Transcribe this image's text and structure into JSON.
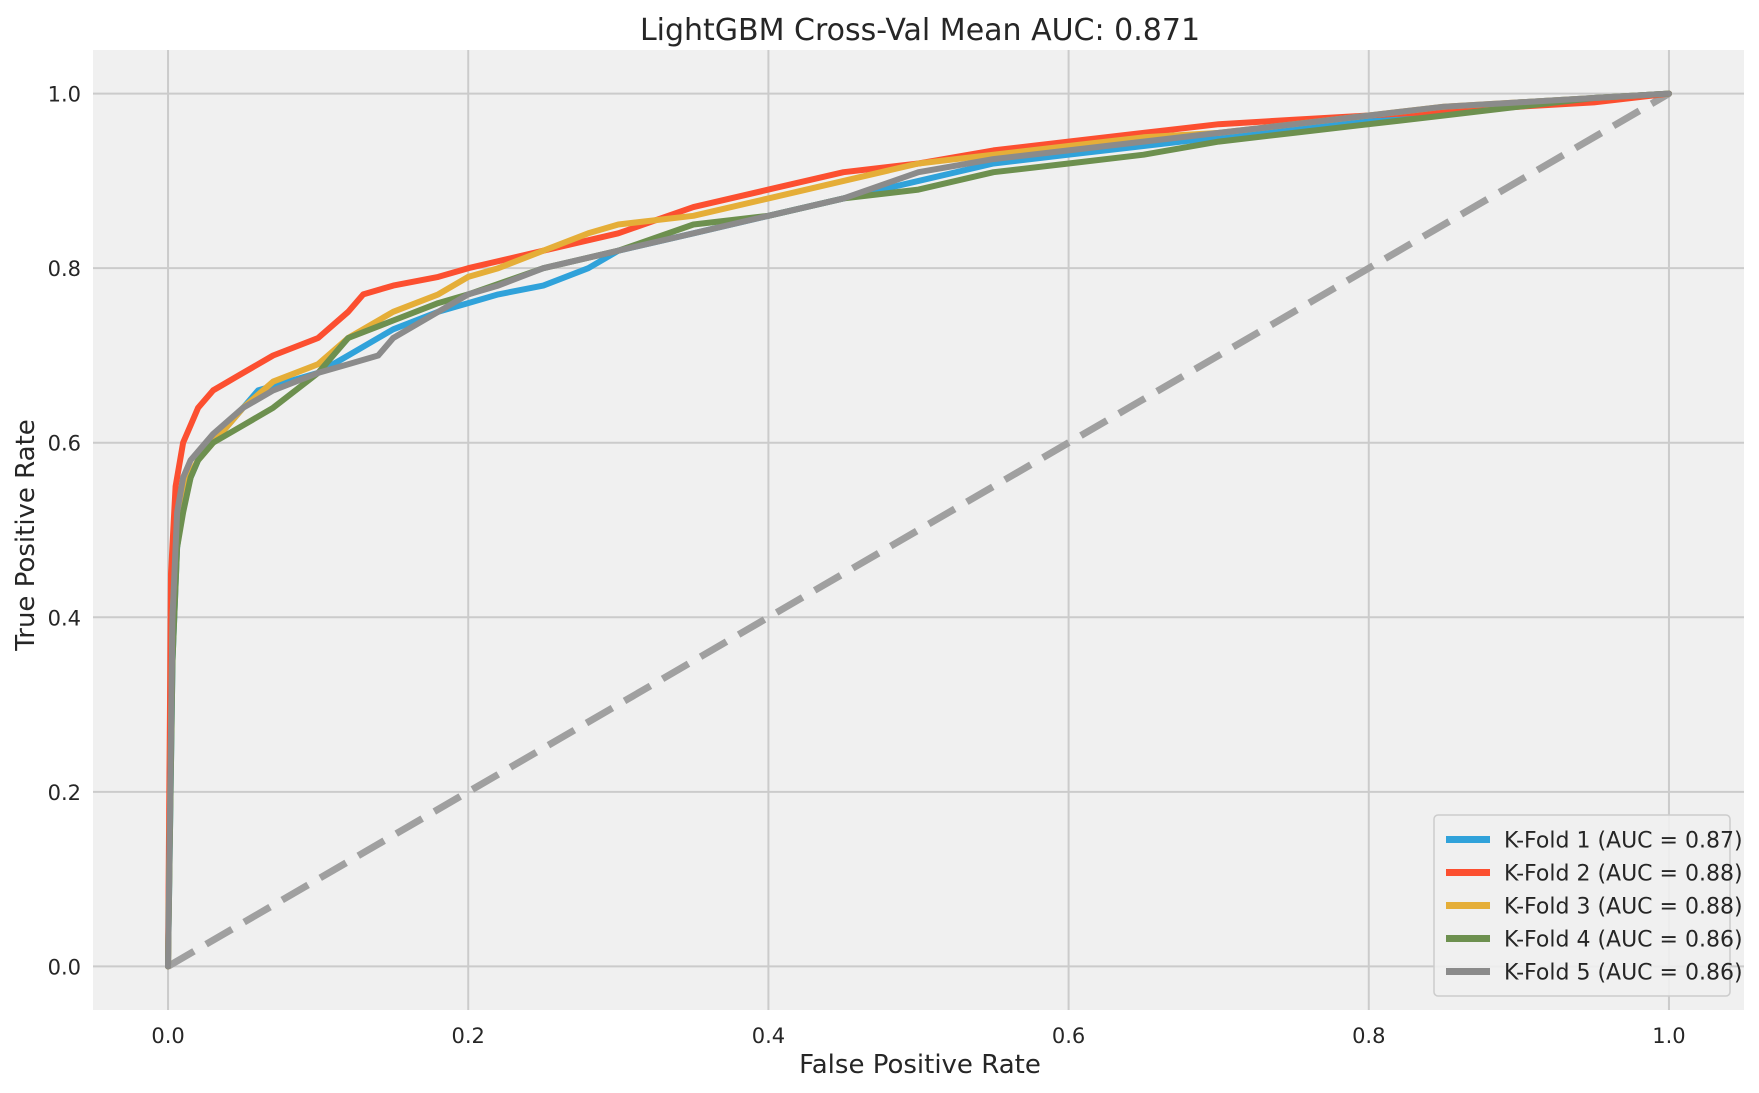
{
  "chart_data": {
    "type": "line",
    "title": "LightGBM Cross-Val Mean AUC: 0.871",
    "xlabel": "False Positive Rate",
    "ylabel": "True Positive Rate",
    "xlim": [
      -0.05,
      1.05
    ],
    "ylim": [
      -0.05,
      1.05
    ],
    "xticks": [
      0.0,
      0.2,
      0.4,
      0.6,
      0.8,
      1.0
    ],
    "yticks": [
      0.0,
      0.2,
      0.4,
      0.6,
      0.8,
      1.0
    ],
    "tick_labels": [
      "0.0",
      "0.2",
      "0.4",
      "0.6",
      "0.8",
      "1.0"
    ],
    "grid": true,
    "background_color": "#f0f0f0",
    "grid_color": "#cbcbcb",
    "legend_position": "lower-right",
    "series": [
      {
        "name": "K-Fold 1 (AUC = 0.87)",
        "color": "#30a2da",
        "x": [
          0.0,
          0.003,
          0.006,
          0.01,
          0.015,
          0.02,
          0.03,
          0.04,
          0.05,
          0.06,
          0.08,
          0.1,
          0.12,
          0.15,
          0.18,
          0.2,
          0.22,
          0.25,
          0.28,
          0.3,
          0.35,
          0.4,
          0.45,
          0.5,
          0.55,
          0.6,
          0.65,
          0.7,
          0.75,
          0.8,
          0.85,
          0.9,
          0.95,
          1.0
        ],
        "y": [
          0.0,
          0.35,
          0.48,
          0.53,
          0.56,
          0.58,
          0.6,
          0.62,
          0.64,
          0.66,
          0.67,
          0.68,
          0.7,
          0.73,
          0.75,
          0.76,
          0.77,
          0.78,
          0.8,
          0.82,
          0.84,
          0.86,
          0.88,
          0.9,
          0.92,
          0.93,
          0.94,
          0.95,
          0.96,
          0.97,
          0.98,
          0.99,
          0.995,
          1.0
        ]
      },
      {
        "name": "K-Fold 2 (AUC = 0.88)",
        "color": "#fc4f30",
        "x": [
          0.0,
          0.002,
          0.005,
          0.01,
          0.015,
          0.02,
          0.03,
          0.04,
          0.05,
          0.07,
          0.1,
          0.12,
          0.13,
          0.15,
          0.18,
          0.2,
          0.25,
          0.3,
          0.35,
          0.4,
          0.45,
          0.5,
          0.55,
          0.6,
          0.65,
          0.7,
          0.75,
          0.8,
          0.85,
          0.9,
          0.95,
          1.0
        ],
        "y": [
          0.0,
          0.45,
          0.55,
          0.6,
          0.62,
          0.64,
          0.66,
          0.67,
          0.68,
          0.7,
          0.72,
          0.75,
          0.77,
          0.78,
          0.79,
          0.8,
          0.82,
          0.84,
          0.87,
          0.89,
          0.91,
          0.92,
          0.935,
          0.945,
          0.955,
          0.965,
          0.97,
          0.975,
          0.98,
          0.985,
          0.99,
          1.0
        ]
      },
      {
        "name": "K-Fold 3 (AUC = 0.88)",
        "color": "#e5ae38",
        "x": [
          0.0,
          0.003,
          0.006,
          0.01,
          0.02,
          0.03,
          0.04,
          0.05,
          0.07,
          0.1,
          0.12,
          0.15,
          0.18,
          0.2,
          0.22,
          0.25,
          0.28,
          0.3,
          0.35,
          0.4,
          0.45,
          0.5,
          0.55,
          0.6,
          0.65,
          0.7,
          0.75,
          0.8,
          0.85,
          0.9,
          0.95,
          1.0
        ],
        "y": [
          0.0,
          0.4,
          0.5,
          0.55,
          0.58,
          0.6,
          0.62,
          0.64,
          0.67,
          0.69,
          0.72,
          0.75,
          0.77,
          0.79,
          0.8,
          0.82,
          0.84,
          0.85,
          0.86,
          0.88,
          0.9,
          0.92,
          0.93,
          0.94,
          0.95,
          0.955,
          0.965,
          0.975,
          0.985,
          0.99,
          0.995,
          1.0
        ]
      },
      {
        "name": "K-Fold 4 (AUC = 0.86)",
        "color": "#6d904f",
        "x": [
          0.0,
          0.003,
          0.006,
          0.01,
          0.015,
          0.02,
          0.03,
          0.05,
          0.07,
          0.1,
          0.12,
          0.15,
          0.18,
          0.2,
          0.25,
          0.3,
          0.35,
          0.4,
          0.45,
          0.5,
          0.55,
          0.6,
          0.65,
          0.7,
          0.75,
          0.8,
          0.85,
          0.9,
          0.95,
          1.0
        ],
        "y": [
          0.0,
          0.35,
          0.48,
          0.52,
          0.56,
          0.58,
          0.6,
          0.62,
          0.64,
          0.68,
          0.72,
          0.74,
          0.76,
          0.77,
          0.8,
          0.82,
          0.85,
          0.86,
          0.88,
          0.89,
          0.91,
          0.92,
          0.93,
          0.945,
          0.955,
          0.965,
          0.975,
          0.985,
          0.995,
          1.0
        ]
      },
      {
        "name": "K-Fold 5 (AUC = 0.86)",
        "color": "#8b8b8b",
        "x": [
          0.0,
          0.003,
          0.006,
          0.01,
          0.015,
          0.02,
          0.03,
          0.05,
          0.07,
          0.1,
          0.12,
          0.14,
          0.15,
          0.18,
          0.2,
          0.22,
          0.25,
          0.3,
          0.35,
          0.4,
          0.45,
          0.5,
          0.55,
          0.6,
          0.65,
          0.7,
          0.75,
          0.8,
          0.85,
          0.9,
          0.95,
          1.0
        ],
        "y": [
          0.0,
          0.4,
          0.52,
          0.56,
          0.58,
          0.59,
          0.61,
          0.64,
          0.66,
          0.68,
          0.69,
          0.7,
          0.72,
          0.75,
          0.77,
          0.78,
          0.8,
          0.82,
          0.84,
          0.86,
          0.88,
          0.91,
          0.925,
          0.935,
          0.945,
          0.955,
          0.965,
          0.975,
          0.985,
          0.99,
          0.995,
          1.0
        ]
      }
    ],
    "reference_line": {
      "x": [
        0.0,
        1.0
      ],
      "y": [
        0.0,
        1.0
      ],
      "color": "#a0a0a0",
      "style": "dashed"
    }
  }
}
